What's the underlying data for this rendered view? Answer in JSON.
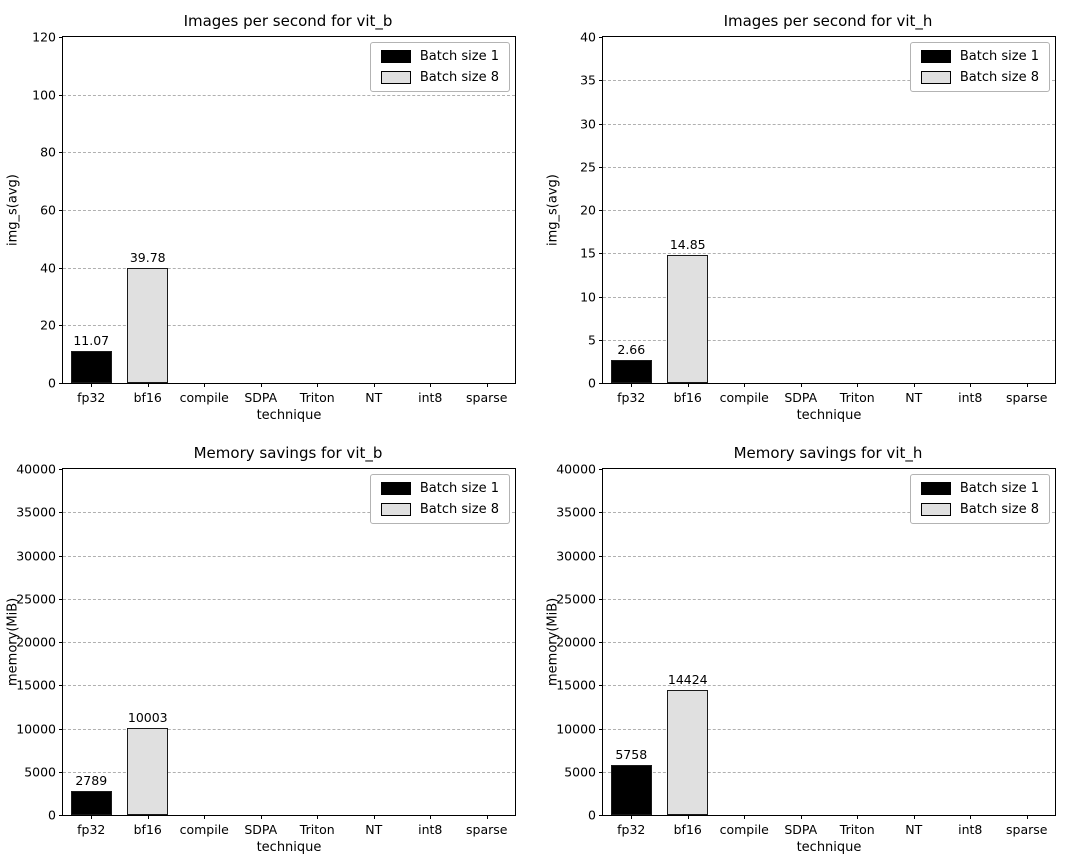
{
  "figure": {
    "background": "#ffffff",
    "grid_color": "#b0b0b0",
    "axis_color": "#000000"
  },
  "chart_data": [
    {
      "type": "bar",
      "title": "Images per second for vit_b",
      "xlabel": "technique",
      "ylabel": "img_s(avg)",
      "categories": [
        "fp32",
        "bf16",
        "compile",
        "SDPA",
        "Triton",
        "NT",
        "int8",
        "sparse"
      ],
      "series": [
        {
          "name": "Batch size 1",
          "color": "#000000",
          "values": [
            11.07,
            null,
            null,
            null,
            null,
            null,
            null,
            null
          ],
          "labels": [
            "11.07",
            null,
            null,
            null,
            null,
            null,
            null,
            null
          ]
        },
        {
          "name": "Batch size 8",
          "color": "#e0e0e0",
          "values": [
            null,
            39.78,
            null,
            null,
            null,
            null,
            null,
            null
          ],
          "labels": [
            null,
            "39.78",
            null,
            null,
            null,
            null,
            null,
            null
          ]
        }
      ],
      "ylim": [
        0,
        120
      ],
      "ytick_step": 20,
      "grid": true,
      "legend_position": "upper right"
    },
    {
      "type": "bar",
      "title": "Images per second for vit_h",
      "xlabel": "technique",
      "ylabel": "img_s(avg)",
      "categories": [
        "fp32",
        "bf16",
        "compile",
        "SDPA",
        "Triton",
        "NT",
        "int8",
        "sparse"
      ],
      "series": [
        {
          "name": "Batch size 1",
          "color": "#000000",
          "values": [
            2.66,
            null,
            null,
            null,
            null,
            null,
            null,
            null
          ],
          "labels": [
            "2.66",
            null,
            null,
            null,
            null,
            null,
            null,
            null
          ]
        },
        {
          "name": "Batch size 8",
          "color": "#e0e0e0",
          "values": [
            null,
            14.85,
            null,
            null,
            null,
            null,
            null,
            null
          ],
          "labels": [
            null,
            "14.85",
            null,
            null,
            null,
            null,
            null,
            null
          ]
        }
      ],
      "ylim": [
        0,
        40
      ],
      "ytick_step": 5,
      "grid": true,
      "legend_position": "upper right"
    },
    {
      "type": "bar",
      "title": "Memory savings for vit_b",
      "xlabel": "technique",
      "ylabel": "memory(MiB)",
      "categories": [
        "fp32",
        "bf16",
        "compile",
        "SDPA",
        "Triton",
        "NT",
        "int8",
        "sparse"
      ],
      "series": [
        {
          "name": "Batch size 1",
          "color": "#000000",
          "values": [
            2789,
            null,
            null,
            null,
            null,
            null,
            null,
            null
          ],
          "labels": [
            "2789",
            null,
            null,
            null,
            null,
            null,
            null,
            null
          ]
        },
        {
          "name": "Batch size 8",
          "color": "#e0e0e0",
          "values": [
            null,
            10003,
            null,
            null,
            null,
            null,
            null,
            null
          ],
          "labels": [
            null,
            "10003",
            null,
            null,
            null,
            null,
            null,
            null
          ]
        }
      ],
      "ylim": [
        0,
        40000
      ],
      "ytick_step": 5000,
      "grid": true,
      "legend_position": "upper right"
    },
    {
      "type": "bar",
      "title": "Memory savings for vit_h",
      "xlabel": "technique",
      "ylabel": "memory(MiB)",
      "categories": [
        "fp32",
        "bf16",
        "compile",
        "SDPA",
        "Triton",
        "NT",
        "int8",
        "sparse"
      ],
      "series": [
        {
          "name": "Batch size 1",
          "color": "#000000",
          "values": [
            5758,
            null,
            null,
            null,
            null,
            null,
            null,
            null
          ],
          "labels": [
            "5758",
            null,
            null,
            null,
            null,
            null,
            null,
            null
          ]
        },
        {
          "name": "Batch size 8",
          "color": "#e0e0e0",
          "values": [
            null,
            14424,
            null,
            null,
            null,
            null,
            null,
            null
          ],
          "labels": [
            null,
            "14424",
            null,
            null,
            null,
            null,
            null,
            null
          ]
        }
      ],
      "ylim": [
        0,
        40000
      ],
      "ytick_step": 5000,
      "grid": true,
      "legend_position": "upper right"
    }
  ]
}
